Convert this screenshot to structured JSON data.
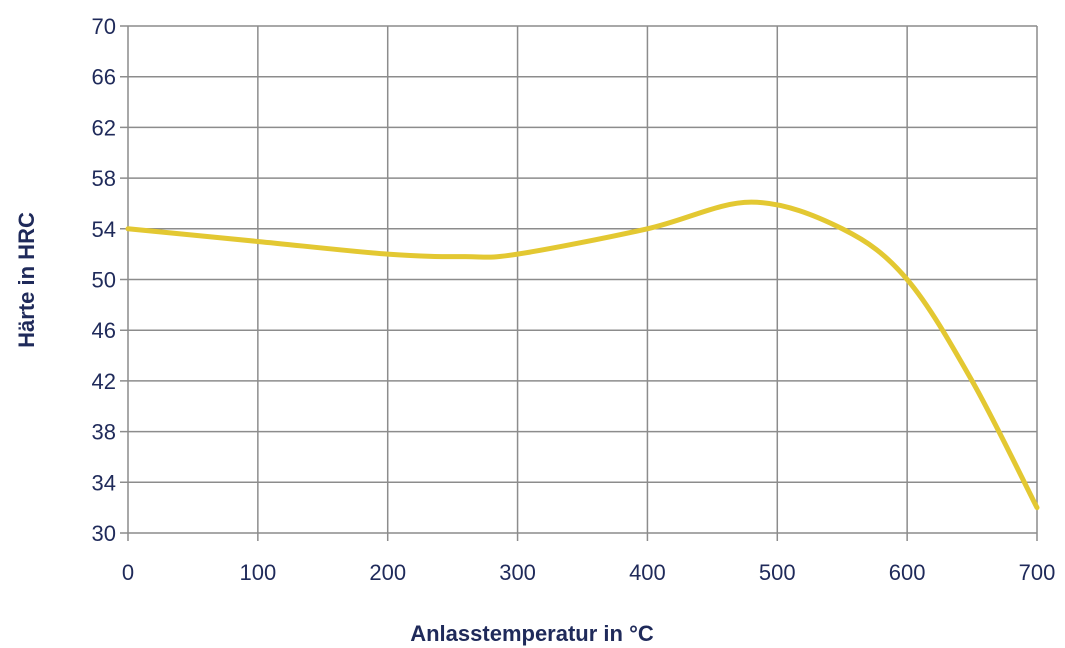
{
  "chart_data": {
    "type": "line",
    "title": "",
    "xlabel": "Anlasstemperatur in °C",
    "ylabel": "Härte in HRC",
    "xlim": [
      0,
      700
    ],
    "ylim": [
      30,
      70
    ],
    "x_ticks": [
      0,
      100,
      200,
      300,
      400,
      500,
      600,
      700
    ],
    "y_ticks": [
      30,
      34,
      38,
      42,
      46,
      50,
      54,
      58,
      62,
      66,
      70
    ],
    "grid": true,
    "legend": "none",
    "series": [
      {
        "color": "#e3c832",
        "x": [
          0,
          100,
          200,
          260,
          300,
          400,
          480,
          550,
          600,
          650,
          700
        ],
        "y": [
          54,
          53,
          52,
          51.8,
          52,
          54,
          56.1,
          54,
          50,
          42,
          32
        ]
      }
    ]
  }
}
